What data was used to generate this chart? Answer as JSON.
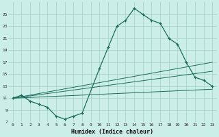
{
  "xlabel": "Humidex (Indice chaleur)",
  "background_color": "#cceee8",
  "grid_color": "#aad4cc",
  "line_color": "#1a6b5a",
  "xlim": [
    -0.5,
    23.5
  ],
  "ylim": [
    7,
    27
  ],
  "yticks": [
    7,
    9,
    11,
    13,
    15,
    17,
    19,
    21,
    23,
    25
  ],
  "xticks": [
    0,
    1,
    2,
    3,
    4,
    5,
    6,
    7,
    8,
    9,
    10,
    11,
    12,
    13,
    14,
    15,
    16,
    17,
    18,
    19,
    20,
    21,
    22,
    23
  ],
  "xtick_labels": [
    "0",
    "1",
    "2",
    "3",
    "4",
    "5",
    "6",
    "7",
    "8",
    "9",
    "10",
    "11",
    "12",
    "13",
    "14",
    "15",
    "16",
    "17",
    "18",
    "19",
    "20",
    "21",
    "22",
    "23"
  ],
  "series1_x": [
    0,
    1,
    2,
    3,
    4,
    5,
    6,
    7,
    8,
    10,
    11,
    12,
    13,
    14,
    15,
    16,
    17,
    18,
    19,
    20,
    21,
    22,
    23
  ],
  "series1_y": [
    11,
    11.5,
    10.5,
    10,
    9.5,
    8.0,
    7.5,
    8.0,
    8.5,
    16.0,
    19.5,
    23.0,
    24.0,
    26.0,
    25.0,
    24.0,
    23.5,
    21.0,
    20.0,
    17.0,
    14.5,
    14.0,
    13.0
  ],
  "series2_x": [
    0,
    23
  ],
  "series2_y": [
    11,
    12.5
  ],
  "series3_x": [
    0,
    23
  ],
  "series3_y": [
    11,
    17.0
  ],
  "series4_x": [
    0,
    23
  ],
  "series4_y": [
    11,
    15.5
  ]
}
